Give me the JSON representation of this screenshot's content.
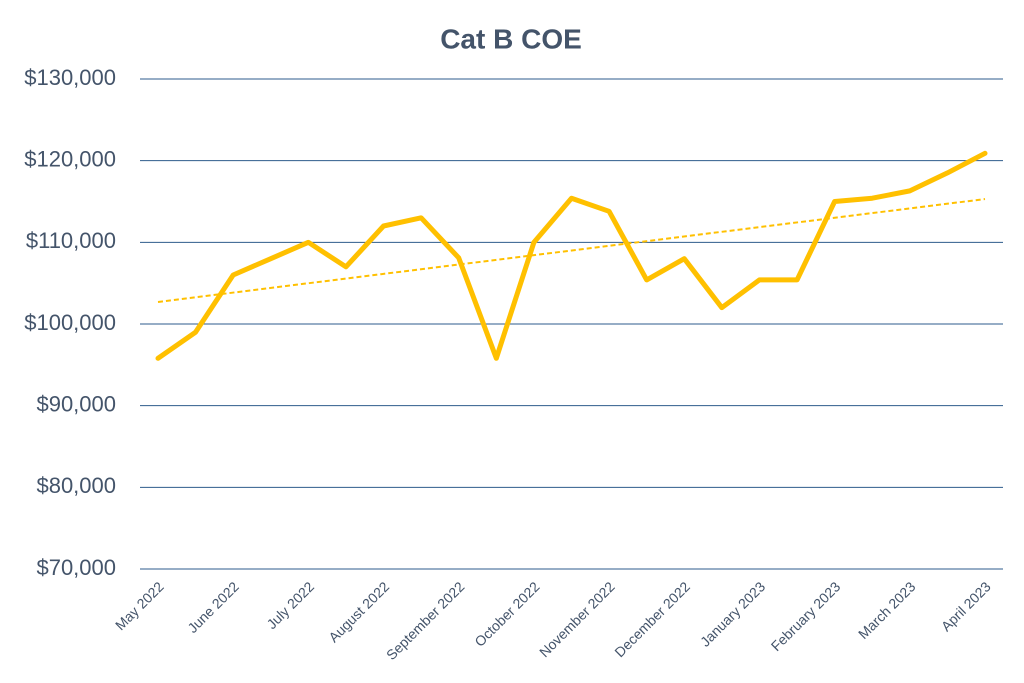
{
  "chart_data": {
    "type": "line",
    "title": "Cat B COE",
    "categories": [
      "May 2022",
      null,
      "June 2022",
      null,
      "July 2022",
      null,
      "August 2022",
      null,
      "September 2022",
      null,
      "October 2022",
      null,
      "November 2022",
      null,
      "December 2022",
      null,
      "January 2023",
      null,
      "February 2023",
      null,
      "March 2023",
      null,
      "April 2023"
    ],
    "series": [
      {
        "color": "#ffc000",
        "values": [
          95800,
          99000,
          106000,
          108000,
          110000,
          107000,
          112000,
          113000,
          108100,
          95800,
          110000,
          115400,
          113800,
          105400,
          108000,
          102000,
          105400,
          105400,
          115000,
          115400,
          116300,
          118500,
          120900
        ]
      }
    ],
    "trendline": {
      "color": "#ffc000",
      "style": "dashed",
      "values": [
        102700,
        115300
      ]
    },
    "ylim": [
      70000,
      130000
    ],
    "yticks": [
      {
        "value": 70000,
        "label": "$70,000"
      },
      {
        "value": 80000,
        "label": "$80,000"
      },
      {
        "value": 90000,
        "label": "$90,000"
      },
      {
        "value": 100000,
        "label": "$100,000"
      },
      {
        "value": 110000,
        "label": "$110,000"
      },
      {
        "value": 120000,
        "label": "$120,000"
      },
      {
        "value": 130000,
        "label": "$130,000"
      }
    ],
    "grid": true,
    "grid_color": "#2e5b8c"
  }
}
